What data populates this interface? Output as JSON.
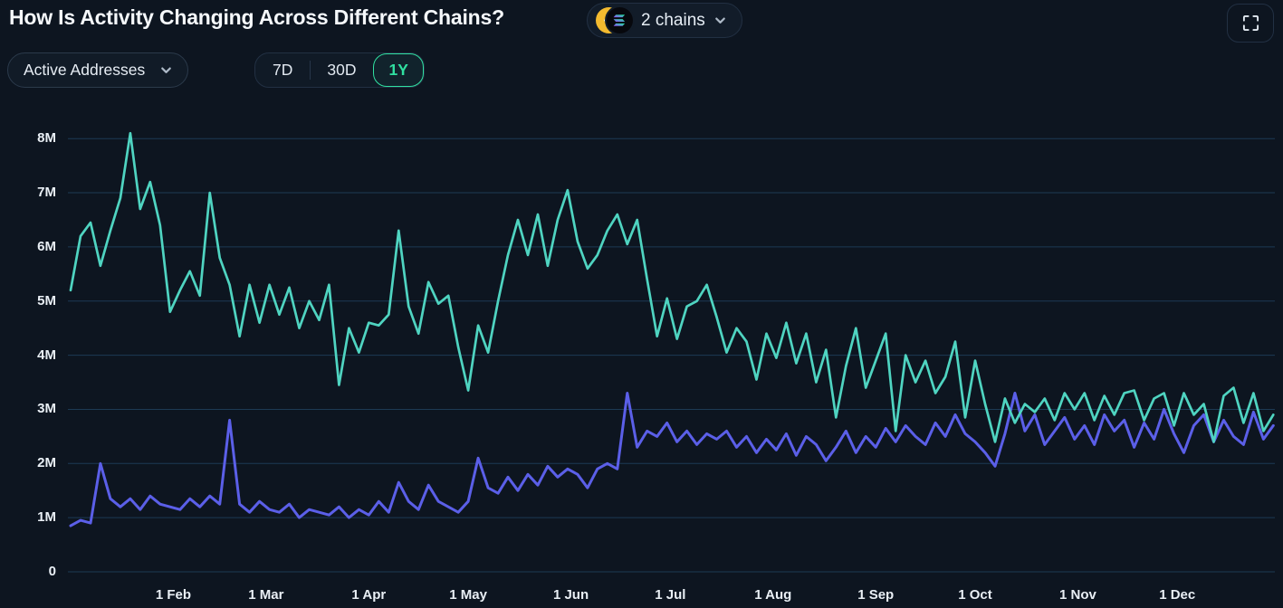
{
  "header": {
    "title": "How Is Activity Changing Across Different Chains?",
    "chains_selector": {
      "label": "2 chains",
      "chains": [
        {
          "name": "BNB",
          "icon": "bnb-coin-icon"
        },
        {
          "name": "Solana",
          "icon": "solana-coin-icon"
        }
      ]
    }
  },
  "controls": {
    "metric_dropdown": {
      "selected": "Active Addresses"
    },
    "range_tabs": {
      "options": [
        "7D",
        "30D",
        "1Y"
      ],
      "selected": "1Y"
    }
  },
  "colors": {
    "bg": "#0d1520",
    "panel": "#121d2a",
    "border": "#2b3a4b",
    "accent": "#30e0a1",
    "teal": "#4fd4c1",
    "indigo": "#5b5fe8",
    "grid": "#1d3a54",
    "axis": "#e9eff5",
    "bnb_yellow": "#F3BA2F",
    "solana_gradient_start": "#9945FF",
    "solana_gradient_end": "#14F195"
  },
  "chart_data": {
    "type": "line",
    "title": "How Is Activity Changing Across Different Chains?",
    "metric": "Active Addresses",
    "range_selected": "1Y",
    "grid": "horizontal",
    "legend": "none",
    "ylim_millions": [
      0,
      8
    ],
    "y_ticks": [
      "0",
      "1M",
      "2M",
      "3M",
      "4M",
      "5M",
      "6M",
      "7M",
      "8M"
    ],
    "x_ticks": [
      {
        "label": "1 Feb",
        "day": 32
      },
      {
        "label": "1 Mar",
        "day": 60
      },
      {
        "label": "1 Apr",
        "day": 91
      },
      {
        "label": "1 May",
        "day": 121
      },
      {
        "label": "1 Jun",
        "day": 152
      },
      {
        "label": "1 Jul",
        "day": 182
      },
      {
        "label": "1 Aug",
        "day": 213
      },
      {
        "label": "1 Sep",
        "day": 244
      },
      {
        "label": "1 Oct",
        "day": 274
      },
      {
        "label": "1 Nov",
        "day": 305
      },
      {
        "label": "1 Dec",
        "day": 335
      }
    ],
    "x_unit": "day of year (1Y span, ~3-day sampling)",
    "x_days": [
      1,
      4,
      7,
      10,
      13,
      16,
      19,
      22,
      25,
      28,
      31,
      34,
      37,
      40,
      43,
      46,
      49,
      52,
      55,
      58,
      61,
      64,
      67,
      70,
      73,
      76,
      79,
      82,
      85,
      88,
      91,
      94,
      97,
      100,
      103,
      106,
      109,
      112,
      115,
      118,
      121,
      124,
      127,
      130,
      133,
      136,
      139,
      142,
      145,
      148,
      151,
      154,
      157,
      160,
      163,
      166,
      169,
      172,
      175,
      178,
      181,
      184,
      187,
      190,
      193,
      196,
      199,
      202,
      205,
      208,
      211,
      214,
      217,
      220,
      223,
      226,
      229,
      232,
      235,
      238,
      241,
      244,
      247,
      250,
      253,
      256,
      259,
      262,
      265,
      268,
      271,
      274,
      277,
      280,
      283,
      286,
      289,
      292,
      295,
      298,
      301,
      304,
      307,
      310,
      313,
      316,
      319,
      322,
      325,
      328,
      331,
      334,
      337,
      340,
      343,
      346,
      349,
      352,
      355,
      358,
      361,
      364
    ],
    "values_unit": "millions of active addresses",
    "series": [
      {
        "name": "BNB",
        "color": "#4fd4c1",
        "values_millions": [
          5.2,
          6.2,
          6.45,
          5.65,
          6.3,
          6.9,
          8.1,
          6.7,
          7.2,
          6.4,
          4.8,
          5.2,
          5.55,
          5.1,
          7.0,
          5.8,
          5.3,
          4.35,
          5.3,
          4.6,
          5.3,
          4.75,
          5.25,
          4.5,
          5.0,
          4.65,
          5.3,
          3.45,
          4.5,
          4.05,
          4.6,
          4.55,
          4.75,
          6.3,
          4.9,
          4.4,
          5.35,
          4.95,
          5.1,
          4.15,
          3.35,
          4.55,
          4.05,
          5.0,
          5.85,
          6.5,
          5.85,
          6.6,
          5.65,
          6.5,
          7.05,
          6.1,
          5.6,
          5.85,
          6.3,
          6.6,
          6.05,
          6.5,
          5.4,
          4.35,
          5.05,
          4.3,
          4.9,
          5.0,
          5.3,
          4.7,
          4.05,
          4.5,
          4.25,
          3.55,
          4.4,
          3.95,
          4.6,
          3.85,
          4.4,
          3.5,
          4.1,
          2.85,
          3.8,
          4.5,
          3.4,
          3.9,
          4.4,
          2.6,
          4.0,
          3.5,
          3.9,
          3.3,
          3.6,
          4.25,
          2.85,
          3.9,
          3.1,
          2.4,
          3.2,
          2.75,
          3.1,
          2.95,
          3.2,
          2.8,
          3.3,
          3.0,
          3.3,
          2.8,
          3.25,
          2.9,
          3.3,
          3.35,
          2.8,
          3.2,
          3.3,
          2.7,
          3.3,
          2.9,
          3.1,
          2.4,
          3.25,
          3.4,
          2.75,
          3.3,
          2.6,
          2.9
        ]
      },
      {
        "name": "Solana",
        "color": "#5b5fe8",
        "values_millions": [
          0.85,
          0.95,
          0.9,
          2.0,
          1.35,
          1.2,
          1.35,
          1.15,
          1.4,
          1.25,
          1.2,
          1.15,
          1.35,
          1.2,
          1.4,
          1.25,
          2.8,
          1.25,
          1.1,
          1.3,
          1.15,
          1.1,
          1.25,
          1.0,
          1.15,
          1.1,
          1.05,
          1.2,
          1.0,
          1.15,
          1.05,
          1.3,
          1.1,
          1.65,
          1.3,
          1.15,
          1.6,
          1.3,
          1.2,
          1.1,
          1.3,
          2.1,
          1.55,
          1.45,
          1.75,
          1.5,
          1.8,
          1.6,
          1.95,
          1.75,
          1.9,
          1.8,
          1.55,
          1.9,
          2.0,
          1.9,
          3.3,
          2.3,
          2.6,
          2.5,
          2.75,
          2.4,
          2.6,
          2.35,
          2.55,
          2.45,
          2.6,
          2.3,
          2.5,
          2.2,
          2.45,
          2.25,
          2.55,
          2.15,
          2.5,
          2.35,
          2.05,
          2.3,
          2.6,
          2.2,
          2.5,
          2.3,
          2.65,
          2.4,
          2.7,
          2.5,
          2.35,
          2.75,
          2.5,
          2.9,
          2.55,
          2.4,
          2.2,
          1.95,
          2.55,
          3.3,
          2.6,
          2.9,
          2.35,
          2.6,
          2.85,
          2.45,
          2.7,
          2.35,
          2.9,
          2.6,
          2.8,
          2.3,
          2.75,
          2.45,
          3.0,
          2.55,
          2.2,
          2.7,
          2.9,
          2.4,
          2.8,
          2.5,
          2.35,
          2.95,
          2.45,
          2.7
        ]
      }
    ]
  }
}
